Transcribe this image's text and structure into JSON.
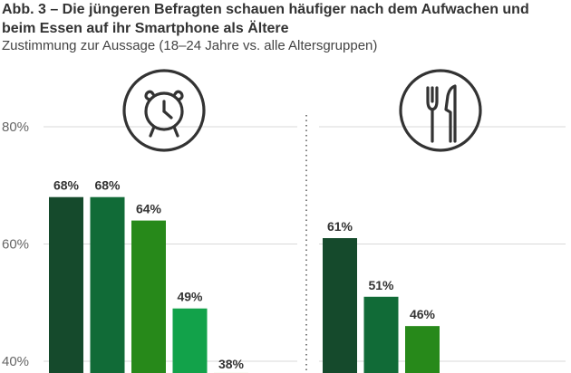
{
  "title_line1": "Abb. 3 – Die jüngeren Befragten schauen häufiger nach dem Aufwachen und",
  "title_line2": "beim Essen auf ihr Smartphone als Ältere",
  "subtitle": "Zustimmung zur Aussage (18–24 Jahre vs. alle Altersgruppen)",
  "icons": [
    "alarm-clock-icon",
    "fork-knife-icon"
  ],
  "colors": [
    "#154a2c",
    "#116b37",
    "#27891a",
    "#12a24a",
    "#86bc25"
  ],
  "chart_data": {
    "type": "bar",
    "ylim": [
      40,
      80
    ],
    "yticks": [
      40,
      60,
      80
    ],
    "ytick_labels": [
      "40%",
      "60%",
      "80%"
    ],
    "grid": true,
    "groups": [
      {
        "icon": "alarm-clock-icon",
        "values": [
          68,
          68,
          64,
          49,
          38
        ],
        "labels": [
          "68%",
          "68%",
          "64%",
          "49%",
          "38%"
        ]
      },
      {
        "icon": "fork-knife-icon",
        "values": [
          61,
          51,
          46
        ],
        "labels": [
          "61%",
          "51%",
          "46%"
        ]
      }
    ]
  }
}
